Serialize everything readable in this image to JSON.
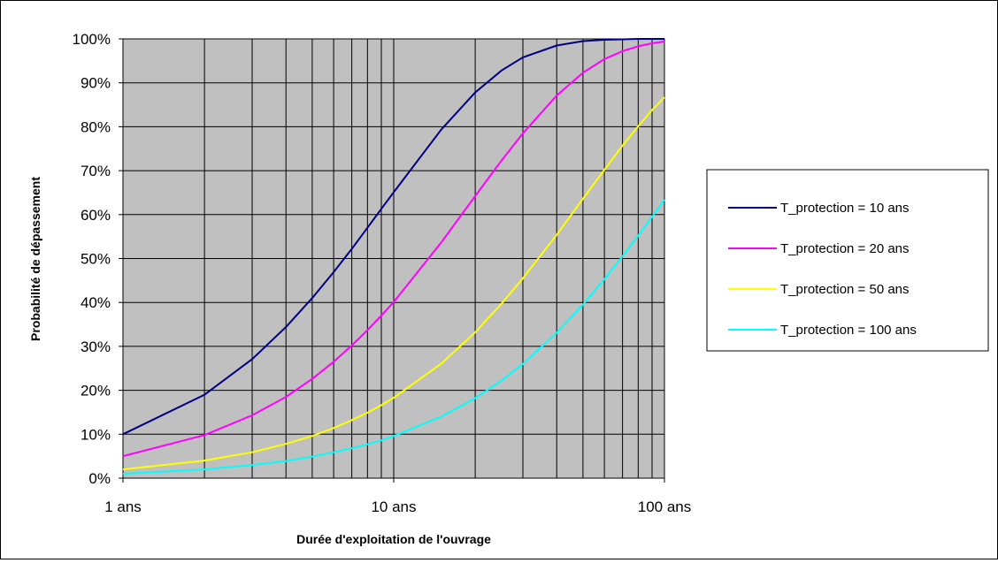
{
  "chart_data": {
    "type": "line",
    "title": "",
    "xlabel": "Durée d'exploitation de l'ouvrage",
    "ylabel": "Probabilité de dépassement",
    "x_scale": "log",
    "xlim": [
      1,
      100
    ],
    "ylim": [
      0,
      1
    ],
    "x_ticks": [
      {
        "value": 1,
        "label": "1 ans"
      },
      {
        "value": 10,
        "label": "10 ans"
      },
      {
        "value": 100,
        "label": "100 ans"
      }
    ],
    "y_ticks": [
      {
        "value": 0,
        "label": "0%"
      },
      {
        "value": 0.1,
        "label": "10%"
      },
      {
        "value": 0.2,
        "label": "20%"
      },
      {
        "value": 0.3,
        "label": "30%"
      },
      {
        "value": 0.4,
        "label": "40%"
      },
      {
        "value": 0.5,
        "label": "50%"
      },
      {
        "value": 0.6,
        "label": "60%"
      },
      {
        "value": 0.7,
        "label": "70%"
      },
      {
        "value": 0.8,
        "label": "80%"
      },
      {
        "value": 0.9,
        "label": "90%"
      },
      {
        "value": 1,
        "label": "100%"
      }
    ],
    "grid": true,
    "plot_background": "#c0c0c0",
    "legend_position": "right",
    "x": [
      1,
      2,
      3,
      4,
      5,
      6,
      7,
      8,
      9,
      10,
      15,
      20,
      25,
      30,
      40,
      50,
      60,
      70,
      80,
      90,
      100
    ],
    "series": [
      {
        "name": "T_protection = 10 ans",
        "color": "#000080",
        "values": [
          0.1,
          0.19,
          0.271,
          0.344,
          0.41,
          0.469,
          0.522,
          0.57,
          0.613,
          0.651,
          0.794,
          0.878,
          0.928,
          0.958,
          0.985,
          0.995,
          0.998,
          0.999,
          1.0,
          1.0,
          1.0
        ]
      },
      {
        "name": "T_protection = 20 ans",
        "color": "#ff00ff",
        "values": [
          0.05,
          0.098,
          0.143,
          0.185,
          0.226,
          0.265,
          0.302,
          0.337,
          0.37,
          0.401,
          0.537,
          0.642,
          0.723,
          0.785,
          0.871,
          0.923,
          0.954,
          0.972,
          0.983,
          0.99,
          0.994
        ]
      },
      {
        "name": "T_protection = 50 ans",
        "color": "#ffff00",
        "values": [
          0.02,
          0.04,
          0.059,
          0.078,
          0.096,
          0.114,
          0.132,
          0.149,
          0.166,
          0.183,
          0.261,
          0.332,
          0.397,
          0.455,
          0.554,
          0.636,
          0.702,
          0.757,
          0.801,
          0.838,
          0.867
        ]
      },
      {
        "name": "T_protection = 100 ans",
        "color": "#00ffff",
        "values": [
          0.01,
          0.02,
          0.03,
          0.039,
          0.049,
          0.059,
          0.068,
          0.077,
          0.086,
          0.096,
          0.14,
          0.182,
          0.222,
          0.26,
          0.331,
          0.395,
          0.453,
          0.505,
          0.552,
          0.595,
          0.634
        ]
      }
    ]
  }
}
